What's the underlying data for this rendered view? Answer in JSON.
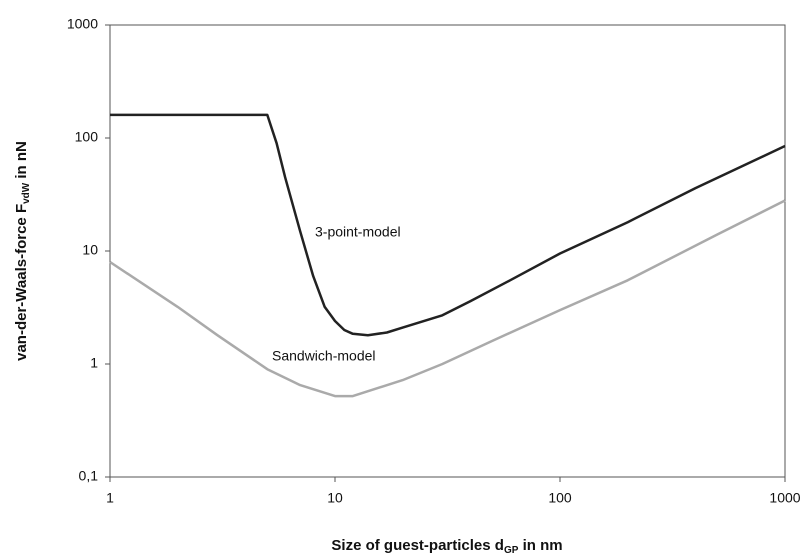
{
  "chart_data": {
    "type": "line",
    "x_label": [
      "Size of guest-particles d",
      "GP",
      " in nm"
    ],
    "y_label": [
      "van-der-Waals-force F",
      "vdW",
      " in nN"
    ],
    "xlog": true,
    "ylog": true,
    "grid": false,
    "xlim": [
      1,
      1000
    ],
    "xticks": [
      1,
      10,
      100,
      1000
    ],
    "ylim": [
      0.1,
      1000
    ],
    "yticks": [
      {
        "value": 0.1,
        "label": "0,1"
      },
      1,
      10,
      100,
      1000
    ],
    "series": [
      {
        "name": "3-point-model",
        "color": "#222222",
        "x": [
          1,
          5,
          5.5,
          6,
          7,
          8,
          9,
          10,
          11,
          12,
          14,
          17,
          20,
          30,
          40,
          60,
          100,
          200,
          400,
          1000
        ],
        "values": [
          160,
          160,
          90,
          45,
          15,
          6,
          3.2,
          2.4,
          2.0,
          1.85,
          1.8,
          1.9,
          2.1,
          2.7,
          3.6,
          5.5,
          9.5,
          18,
          36,
          85
        ]
      },
      {
        "name": "Sandwich-model",
        "color": "#aaaaaa",
        "x": [
          1,
          2,
          3,
          5,
          7,
          10,
          12,
          15,
          20,
          30,
          50,
          100,
          200,
          500,
          1000
        ],
        "values": [
          8,
          3.2,
          1.8,
          0.9,
          0.65,
          0.52,
          0.52,
          0.6,
          0.72,
          1,
          1.6,
          3,
          5.5,
          14,
          28
        ]
      }
    ]
  }
}
